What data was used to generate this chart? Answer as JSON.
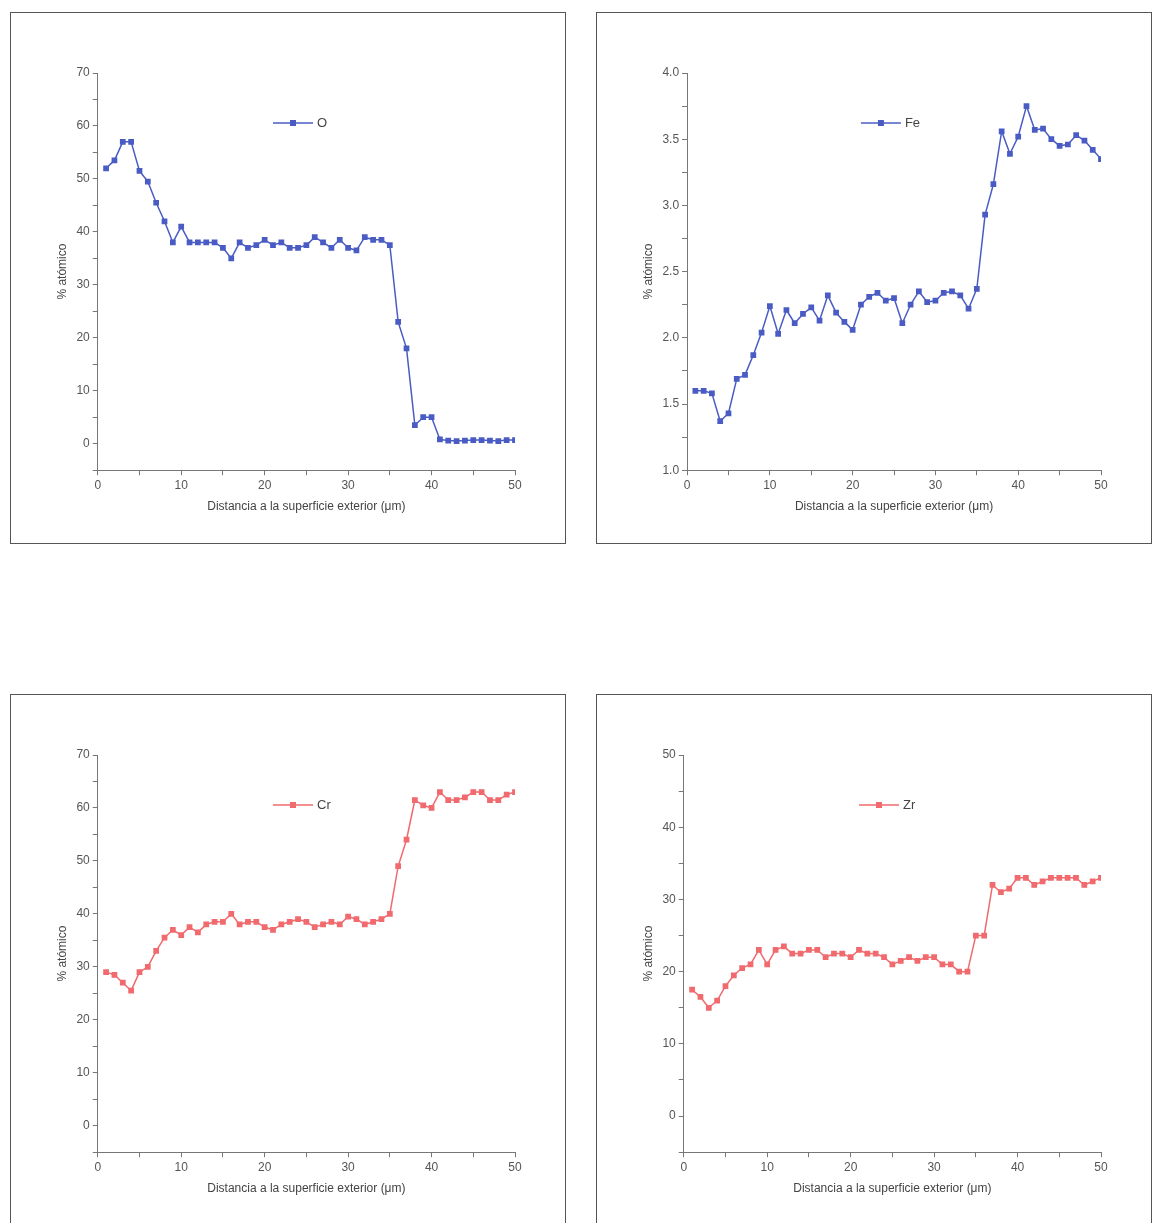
{
  "chart_data": [
    {
      "type": "line",
      "xlabel": "Distancia a la superficie exterior (μm)",
      "ylabel": "% atómico",
      "x": [
        1,
        2,
        3,
        4,
        5,
        6,
        7,
        8,
        9,
        10,
        11,
        12,
        13,
        14,
        15,
        16,
        17,
        18,
        19,
        20,
        21,
        22,
        23,
        24,
        25,
        26,
        27,
        28,
        29,
        30,
        31,
        32,
        33,
        34,
        35,
        36,
        37,
        38,
        39,
        40,
        41,
        42,
        43,
        44,
        45,
        46,
        47,
        48,
        49,
        50
      ],
      "xlim": [
        0,
        50
      ],
      "xticks": [
        0,
        {
          "value": 5,
          "label": null
        },
        10,
        {
          "value": 15,
          "label": null
        },
        20,
        {
          "value": 25,
          "label": null
        },
        30,
        {
          "value": 35,
          "label": null
        },
        40,
        {
          "value": 45,
          "label": null
        },
        50
      ],
      "ylim": [
        -5,
        70
      ],
      "yticks": [
        {
          "value": -5,
          "label": null
        },
        0,
        {
          "value": 5,
          "label": null
        },
        10,
        {
          "value": 15,
          "label": null
        },
        20,
        {
          "value": 25,
          "label": null
        },
        30,
        {
          "value": 35,
          "label": null
        },
        40,
        {
          "value": 45,
          "label": null
        },
        50,
        {
          "value": 55,
          "label": null
        },
        60,
        {
          "value": 65,
          "label": null
        },
        70
      ],
      "grid": false,
      "legend": "top right",
      "marker": "square",
      "line_style": "solid",
      "series": [
        {
          "name": "O",
          "color": "#4a5cc4",
          "values": [
            52,
            53.5,
            57,
            57,
            51.5,
            49.5,
            45.5,
            42,
            38,
            41,
            38,
            38,
            38,
            38,
            37,
            35,
            38,
            37,
            37.5,
            38.5,
            37.5,
            38,
            37,
            37,
            37.5,
            39,
            38,
            37,
            38.5,
            37,
            36.5,
            39,
            38.5,
            38.5,
            37.5,
            23,
            18,
            3.5,
            5,
            5,
            0.8,
            0.6,
            0.5,
            0.6,
            0.7,
            0.7,
            0.6,
            0.5,
            0.7,
            0.7
          ]
        }
      ]
    },
    {
      "type": "line",
      "xlabel": "Distancia a la superficie exterior (μm)",
      "ylabel": "% atómico",
      "x": [
        1,
        2,
        3,
        4,
        5,
        6,
        7,
        8,
        9,
        10,
        11,
        12,
        13,
        14,
        15,
        16,
        17,
        18,
        19,
        20,
        21,
        22,
        23,
        24,
        25,
        26,
        27,
        28,
        29,
        30,
        31,
        32,
        33,
        34,
        35,
        36,
        37,
        38,
        39,
        40,
        41,
        42,
        43,
        44,
        45,
        46,
        47,
        48,
        49,
        50
      ],
      "xlim": [
        0,
        50
      ],
      "xticks": [
        0,
        {
          "value": 5,
          "label": null
        },
        10,
        {
          "value": 15,
          "label": null
        },
        20,
        {
          "value": 25,
          "label": null
        },
        30,
        {
          "value": 35,
          "label": null
        },
        40,
        {
          "value": 45,
          "label": null
        },
        50
      ],
      "ylim": [
        1,
        4
      ],
      "yticks": [
        {
          "value": 1,
          "label": "1.0"
        },
        {
          "value": 1.25,
          "label": null
        },
        {
          "value": 1.5,
          "label": "1.5"
        },
        {
          "value": 1.75,
          "label": null
        },
        {
          "value": 2,
          "label": "2.0"
        },
        {
          "value": 2.25,
          "label": null
        },
        {
          "value": 2.5,
          "label": "2.5"
        },
        {
          "value": 2.75,
          "label": null
        },
        {
          "value": 3,
          "label": "3.0"
        },
        {
          "value": 3.25,
          "label": null
        },
        {
          "value": 3.5,
          "label": "3.5"
        },
        {
          "value": 3.75,
          "label": null
        },
        {
          "value": 4,
          "label": "4.0"
        }
      ],
      "grid": false,
      "legend": "top right",
      "marker": "square",
      "line_style": "solid",
      "series": [
        {
          "name": "Fe",
          "color": "#4a5cc4",
          "values": [
            1.6,
            1.6,
            1.58,
            1.37,
            1.43,
            1.69,
            1.72,
            1.87,
            2.04,
            2.24,
            2.03,
            2.21,
            2.11,
            2.18,
            2.23,
            2.13,
            2.32,
            2.19,
            2.12,
            2.06,
            2.25,
            2.31,
            2.34,
            2.28,
            2.3,
            2.11,
            2.25,
            2.35,
            2.27,
            2.28,
            2.34,
            2.35,
            2.32,
            2.22,
            2.37,
            2.93,
            3.16,
            3.56,
            3.39,
            3.52,
            3.75,
            3.57,
            3.58,
            3.5,
            3.45,
            3.46,
            3.53,
            3.49,
            3.42,
            3.35
          ]
        }
      ]
    },
    {
      "type": "line",
      "xlabel": "Distancia a la superficie exterior (μm)",
      "ylabel": "% atómico",
      "x": [
        1,
        2,
        3,
        4,
        5,
        6,
        7,
        8,
        9,
        10,
        11,
        12,
        13,
        14,
        15,
        16,
        17,
        18,
        19,
        20,
        21,
        22,
        23,
        24,
        25,
        26,
        27,
        28,
        29,
        30,
        31,
        32,
        33,
        34,
        35,
        36,
        37,
        38,
        39,
        40,
        41,
        42,
        43,
        44,
        45,
        46,
        47,
        48,
        49,
        50
      ],
      "xlim": [
        0,
        50
      ],
      "xticks": [
        0,
        {
          "value": 5,
          "label": null
        },
        10,
        {
          "value": 15,
          "label": null
        },
        20,
        {
          "value": 25,
          "label": null
        },
        30,
        {
          "value": 35,
          "label": null
        },
        40,
        {
          "value": 45,
          "label": null
        },
        50
      ],
      "ylim": [
        -5,
        70
      ],
      "yticks": [
        {
          "value": -5,
          "label": null
        },
        0,
        {
          "value": 5,
          "label": null
        },
        10,
        {
          "value": 15,
          "label": null
        },
        20,
        {
          "value": 25,
          "label": null
        },
        30,
        {
          "value": 35,
          "label": null
        },
        40,
        {
          "value": 45,
          "label": null
        },
        50,
        {
          "value": 55,
          "label": null
        },
        60,
        {
          "value": 65,
          "label": null
        },
        70
      ],
      "grid": false,
      "legend": "top right",
      "marker": "square",
      "line_style": "solid",
      "series": [
        {
          "name": "Cr",
          "color": "#f06a6e",
          "values": [
            29,
            28.5,
            27,
            25.5,
            29,
            30,
            33,
            35.5,
            37,
            36,
            37.5,
            36.5,
            38,
            38.5,
            38.5,
            40,
            38,
            38.5,
            38.5,
            37.5,
            37,
            38,
            38.5,
            39,
            38.5,
            37.5,
            38,
            38.5,
            38,
            39.5,
            39,
            38,
            38.5,
            39,
            40,
            49,
            54,
            61.5,
            60.5,
            60,
            63,
            61.5,
            61.5,
            62,
            63,
            63,
            61.5,
            61.5,
            62.5,
            63
          ]
        }
      ]
    },
    {
      "type": "line",
      "xlabel": "Distancia a la superficie exterior (μm)",
      "ylabel": "% atómico",
      "x": [
        1,
        2,
        3,
        4,
        5,
        6,
        7,
        8,
        9,
        10,
        11,
        12,
        13,
        14,
        15,
        16,
        17,
        18,
        19,
        20,
        21,
        22,
        23,
        24,
        25,
        26,
        27,
        28,
        29,
        30,
        31,
        32,
        33,
        34,
        35,
        36,
        37,
        38,
        39,
        40,
        41,
        42,
        43,
        44,
        45,
        46,
        47,
        48,
        49,
        50
      ],
      "xlim": [
        0,
        50
      ],
      "xticks": [
        0,
        {
          "value": 5,
          "label": null
        },
        10,
        {
          "value": 15,
          "label": null
        },
        20,
        {
          "value": 25,
          "label": null
        },
        30,
        {
          "value": 35,
          "label": null
        },
        40,
        {
          "value": 45,
          "label": null
        },
        50
      ],
      "ylim": [
        -5,
        50
      ],
      "yticks": [
        {
          "value": -5,
          "label": null
        },
        0,
        {
          "value": 5,
          "label": null
        },
        10,
        {
          "value": 15,
          "label": null
        },
        20,
        {
          "value": 25,
          "label": null
        },
        30,
        {
          "value": 35,
          "label": null
        },
        40,
        {
          "value": 45,
          "label": null
        },
        50
      ],
      "grid": false,
      "legend": "top right",
      "marker": "square",
      "line_style": "solid",
      "series": [
        {
          "name": "Zr",
          "color": "#f06a6e",
          "values": [
            17.5,
            16.5,
            15,
            16,
            18,
            19.5,
            20.5,
            21,
            23,
            21,
            23,
            23.5,
            22.5,
            22.5,
            23,
            23,
            22,
            22.5,
            22.5,
            22,
            23,
            22.5,
            22.5,
            22,
            21,
            21.5,
            22,
            21.5,
            22,
            22,
            21,
            21,
            20,
            20,
            25,
            25,
            32,
            31,
            31.5,
            33,
            33,
            32,
            32.5,
            33,
            33,
            33,
            33,
            32,
            32.5,
            33
          ]
        }
      ]
    }
  ]
}
